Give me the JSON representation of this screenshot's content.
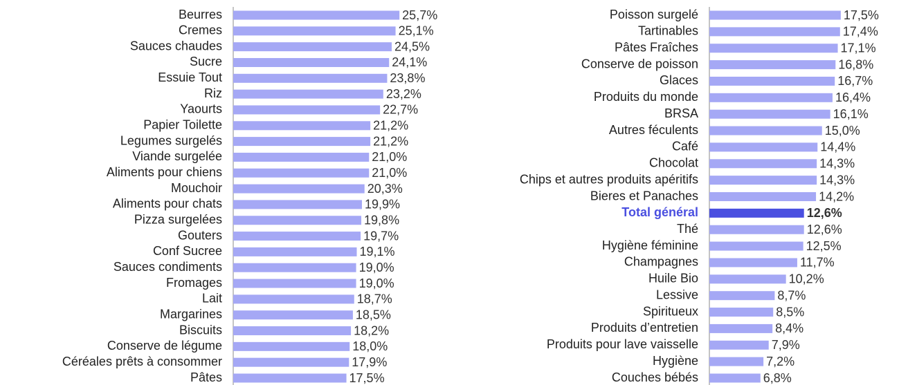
{
  "chart_data": [
    {
      "type": "bar",
      "orientation": "horizontal",
      "color": "#a5a8f5",
      "xlim": [
        0,
        27.5
      ],
      "categories": [
        "Beurres",
        "Cremes",
        "Sauces chaudes",
        "Sucre",
        "Essuie Tout",
        "Riz",
        "Yaourts",
        "Papier Toilette",
        "Legumes surgelés",
        "Viande surgelée",
        "Aliments pour chiens",
        "Mouchoir",
        "Aliments pour chats",
        "Pizza surgelées",
        "Gouters",
        "Conf Sucree",
        "Sauces condiments",
        "Fromages",
        "Lait",
        "Margarines",
        "Biscuits",
        "Conserve de légume",
        "Céréales prêts à consommer",
        "Pâtes"
      ],
      "values": [
        25.7,
        25.1,
        24.5,
        24.1,
        23.8,
        23.2,
        22.7,
        21.2,
        21.2,
        21.0,
        21.0,
        20.3,
        19.9,
        19.8,
        19.7,
        19.1,
        19.0,
        19.0,
        18.7,
        18.5,
        18.2,
        18.0,
        17.9,
        17.5
      ],
      "value_labels": [
        "25,7%",
        "25,1%",
        "24,5%",
        "24,1%",
        "23,8%",
        "23,2%",
        "22,7%",
        "21,2%",
        "21,2%",
        "21,0%",
        "21,0%",
        "20,3%",
        "19,9%",
        "19,8%",
        "19,7%",
        "19,1%",
        "19,0%",
        "19,0%",
        "18,7%",
        "18,5%",
        "18,2%",
        "18,0%",
        "17,9%",
        "17,5%"
      ]
    },
    {
      "type": "bar",
      "orientation": "horizontal",
      "color": "#a5a8f5",
      "xlim": [
        0,
        20
      ],
      "categories": [
        "Poisson surgelé",
        "Tartinables",
        "Pâtes Fraîches",
        "Conserve de poisson",
        "Glaces",
        "Produits du  monde",
        "BRSA",
        "Autres féculents",
        "Café",
        "Chocolat",
        "Chips et autres produits apéritifs",
        "Bieres et Panaches",
        "Total général",
        "Thé",
        "Hygiène féminine",
        "Champagnes",
        "Huile Bio",
        "Lessive",
        "Spiritueux",
        "Produits d’entretien",
        "Produits pour lave vaisselle",
        "Hygiène",
        "Couches bébés"
      ],
      "values": [
        17.5,
        17.4,
        17.1,
        16.8,
        16.7,
        16.4,
        16.1,
        15.0,
        14.4,
        14.3,
        14.3,
        14.2,
        12.6,
        12.6,
        12.5,
        11.7,
        10.2,
        8.7,
        8.5,
        8.4,
        7.9,
        7.2,
        6.8
      ],
      "value_labels": [
        "17,5%",
        "17,4%",
        "17,1%",
        "16,8%",
        "16,7%",
        "16,4%",
        "16,1%",
        "15,0%",
        "14,4%",
        "14,3%",
        "14,3%",
        "14,2%",
        "12,6%",
        "12,6%",
        "12,5%",
        "11,7%",
        "10,2%",
        "8,7%",
        "8,5%",
        "8,4%",
        "7,9%",
        "7,2%",
        "6,8%"
      ],
      "colors": [
        "#a5a8f5",
        "#a5a8f5",
        "#a5a8f5",
        "#a5a8f5",
        "#a5a8f5",
        "#a5a8f5",
        "#a5a8f5",
        "#a5a8f5",
        "#a5a8f5",
        "#a5a8f5",
        "#a5a8f5",
        "#a5a8f5",
        "#4a4fe0",
        "#a5a8f5",
        "#a5a8f5",
        "#a5a8f5",
        "#a5a8f5",
        "#a5a8f5",
        "#a5a8f5",
        "#a5a8f5",
        "#a5a8f5",
        "#a5a8f5",
        "#a5a8f5"
      ]
    }
  ]
}
